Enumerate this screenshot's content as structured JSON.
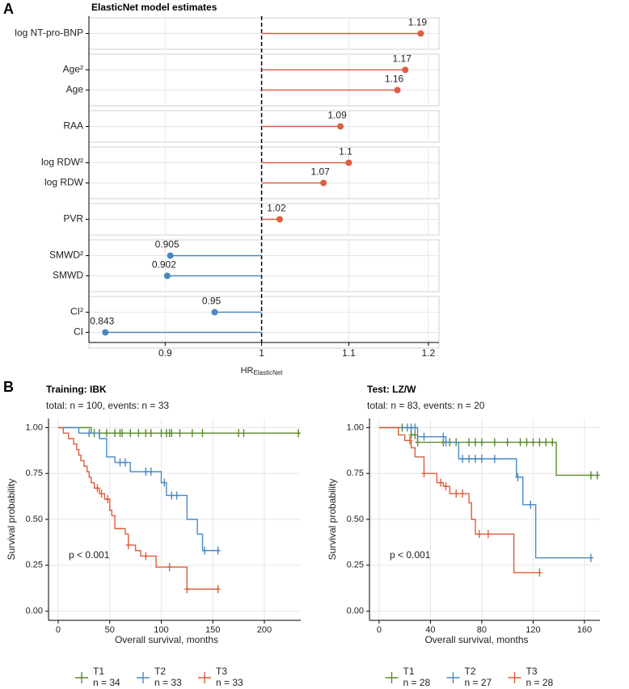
{
  "panel_labels": [
    "A",
    "B"
  ],
  "chart_data": [
    {
      "type": "lollipop",
      "title": "ElasticNet model estimates",
      "xlabel": "HR",
      "xlabel_sub": "ElasticNet",
      "log_x": true,
      "xlim": [
        0.828,
        1.214
      ],
      "xticks": [
        0.9,
        1,
        1.1,
        1.2
      ],
      "reference": 1,
      "grid": true,
      "colors": {
        "above": "#dd5f43",
        "below": "#4b87c3"
      },
      "groups": [
        {
          "categories": [
            "log NT-pro-BNP"
          ],
          "values": [
            1.19
          ]
        },
        {
          "categories": [
            "Age²",
            "Age"
          ],
          "values": [
            1.17,
            1.16
          ]
        },
        {
          "categories": [
            "RAA"
          ],
          "values": [
            1.09
          ]
        },
        {
          "categories": [
            "log RDW²",
            "log RDW"
          ],
          "values": [
            1.1,
            1.07
          ]
        },
        {
          "categories": [
            "PVR"
          ],
          "values": [
            1.02
          ]
        },
        {
          "categories": [
            "SMWD²",
            "SMWD"
          ],
          "values": [
            0.905,
            0.902
          ]
        },
        {
          "categories": [
            "CI²",
            "CI"
          ],
          "values": [
            0.95,
            0.843
          ]
        }
      ]
    },
    {
      "type": "km",
      "title": "Training: IBK",
      "subtitle": "total: n = 100, events: n = 33",
      "annotation": "p < 0.001",
      "xlabel": "Overall survival, months",
      "ylabel": "Survival probability",
      "xlim": [
        -9.4,
        235.3
      ],
      "xticks": [
        0,
        50,
        100,
        150,
        200
      ],
      "ylim": [
        -0.05,
        1.05
      ],
      "yticks": [
        {
          "value": 0,
          "label": "0.00"
        },
        {
          "value": 0.25,
          "label": "0.25"
        },
        {
          "value": 0.5,
          "label": "0.50"
        },
        {
          "value": 0.75,
          "label": "0.75"
        },
        {
          "value": 1,
          "label": "1.00"
        }
      ],
      "grid": true,
      "legend": "bottom",
      "series": [
        {
          "name": "T1",
          "n_label": "n = 34",
          "color": "#5b8a2c",
          "x": [
            0,
            32,
            233
          ],
          "values": [
            1,
            0.97,
            0.97
          ],
          "censored": [
            35,
            40,
            47,
            55,
            60,
            62,
            70,
            78,
            85,
            90,
            100,
            105,
            108,
            110,
            118,
            130,
            140,
            175,
            180,
            233
          ]
        },
        {
          "name": "T2",
          "n_label": "n = 33",
          "color": "#4a8ac4",
          "x": [
            0,
            20,
            40,
            47,
            55,
            70,
            100,
            105,
            125,
            135,
            140,
            155
          ],
          "values": [
            1,
            0.97,
            0.94,
            0.84,
            0.81,
            0.76,
            0.7,
            0.63,
            0.5,
            0.42,
            0.33,
            0.33
          ],
          "censored": [
            30,
            60,
            65,
            85,
            90,
            103,
            110,
            115,
            142,
            155
          ]
        },
        {
          "name": "T3",
          "n_label": "n = 33",
          "color": "#e05c3c",
          "x": [
            0,
            5,
            10,
            15,
            18,
            20,
            22,
            25,
            28,
            30,
            32,
            35,
            40,
            45,
            50,
            52,
            55,
            65,
            68,
            75,
            80,
            95,
            125,
            155
          ],
          "values": [
            1,
            0.97,
            0.94,
            0.91,
            0.88,
            0.85,
            0.82,
            0.79,
            0.76,
            0.73,
            0.7,
            0.67,
            0.64,
            0.61,
            0.55,
            0.52,
            0.45,
            0.42,
            0.36,
            0.33,
            0.3,
            0.24,
            0.12,
            0.12
          ],
          "censored": [
            38,
            42,
            48,
            68,
            85,
            108,
            125,
            155
          ]
        }
      ]
    },
    {
      "type": "km",
      "title": "Test: LZ/W",
      "subtitle": "total: n = 83, events: n = 20",
      "annotation": "p < 0.001",
      "xlabel": "Overall survival, months",
      "ylabel": "Survival probability",
      "xlim": [
        -7.5,
        172
      ],
      "xticks": [
        0,
        40,
        80,
        120,
        160
      ],
      "ylim": [
        -0.05,
        1.05
      ],
      "yticks": [
        {
          "value": 0,
          "label": "0.00"
        },
        {
          "value": 0.25,
          "label": "0.25"
        },
        {
          "value": 0.5,
          "label": "0.50"
        },
        {
          "value": 0.75,
          "label": "0.75"
        },
        {
          "value": 1,
          "label": "1.00"
        }
      ],
      "grid": true,
      "legend": "bottom",
      "series": [
        {
          "name": "T1",
          "n_label": "n = 28",
          "color": "#5b8a2c",
          "x": [
            0,
            20,
            25,
            30,
            138,
            170
          ],
          "values": [
            1,
            1,
            0.96,
            0.92,
            0.74,
            0.74
          ],
          "censored": [
            18,
            25,
            28,
            30,
            50,
            55,
            60,
            70,
            75,
            80,
            90,
            100,
            110,
            115,
            120,
            125,
            130,
            135,
            165,
            170
          ]
        },
        {
          "name": "T2",
          "n_label": "n = 27",
          "color": "#4a8ac4",
          "x": [
            0,
            30,
            52,
            62,
            107,
            112,
            122,
            165
          ],
          "values": [
            1,
            0.95,
            0.92,
            0.83,
            0.73,
            0.58,
            0.29,
            0.29
          ],
          "censored": [
            22,
            25,
            28,
            35,
            50,
            52,
            65,
            70,
            75,
            80,
            90,
            108,
            118,
            165
          ]
        },
        {
          "name": "T3",
          "n_label": "n = 28",
          "color": "#e05c3c",
          "x": [
            0,
            15,
            20,
            25,
            28,
            35,
            45,
            50,
            55,
            70,
            72,
            75,
            105,
            125
          ],
          "values": [
            1,
            0.96,
            0.93,
            0.89,
            0.84,
            0.75,
            0.7,
            0.68,
            0.64,
            0.59,
            0.5,
            0.42,
            0.21,
            0.21
          ],
          "censored": [
            24,
            35,
            48,
            52,
            60,
            65,
            78,
            85,
            125
          ]
        }
      ]
    }
  ]
}
